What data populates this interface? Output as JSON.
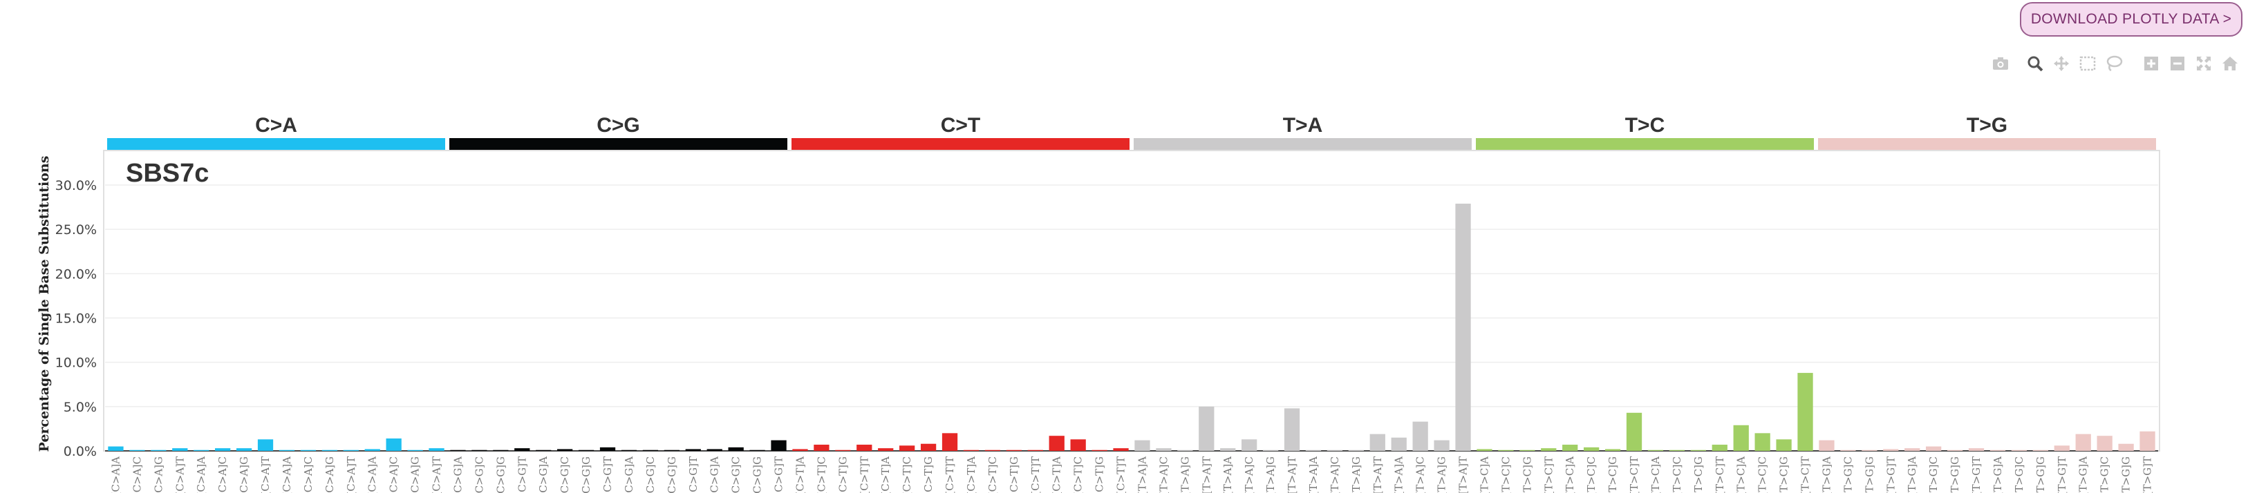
{
  "download_button": {
    "label": "DOWNLOAD PLOTLY DATA >"
  },
  "modebar": {
    "icons": [
      "camera-icon",
      "zoom-icon",
      "pan-icon",
      "box-select-icon",
      "lasso-icon",
      "zoom-in-icon",
      "zoom-out-icon",
      "autoscale-icon",
      "home-icon"
    ]
  },
  "colors": {
    "C>A": "#1ebff0",
    "C>G": "#050708",
    "C>T": "#e62725",
    "T>A": "#cbcacb",
    "T>C": "#a1cf64",
    "T>G": "#edc8c5"
  },
  "chart_data": {
    "type": "bar",
    "title": "SBS7c",
    "ylabel": "Percentage of Single Base Substitutions",
    "ylim": [
      0,
      30
    ],
    "yticks": [
      "0.0%",
      "5.0%",
      "10.0%",
      "15.0%",
      "20.0%",
      "25.0%",
      "30.0%"
    ],
    "ytick_values": [
      0,
      5,
      10,
      15,
      20,
      25,
      30
    ],
    "grid": true,
    "groups": [
      {
        "name": "C>A",
        "color": "#1ebff0",
        "contexts": [
          "A[C>A]A",
          "A[C>A]C",
          "A[C>A]G",
          "A[C>A]T",
          "C[C>A]A",
          "C[C>A]C",
          "C[C>A]G",
          "C[C>A]T",
          "G[C>A]A",
          "G[C>A]C",
          "G[C>A]G",
          "G[C>A]T",
          "T[C>A]A",
          "T[C>A]C",
          "T[C>A]G",
          "T[C>A]T"
        ],
        "values": [
          0.5,
          0.1,
          0.1,
          0.3,
          0.1,
          0.3,
          0.3,
          1.3,
          0.1,
          0.1,
          0.1,
          0.1,
          0.2,
          1.4,
          0.1,
          0.3
        ]
      },
      {
        "name": "C>G",
        "color": "#050708",
        "contexts": [
          "A[C>G]A",
          "A[C>G]C",
          "A[C>G]G",
          "A[C>G]T",
          "C[C>G]A",
          "C[C>G]C",
          "C[C>G]G",
          "C[C>G]T",
          "G[C>G]A",
          "G[C>G]C",
          "G[C>G]G",
          "G[C>G]T",
          "T[C>G]A",
          "T[C>G]C",
          "T[C>G]G",
          "T[C>G]T"
        ],
        "values": [
          0.1,
          0.1,
          0.1,
          0.3,
          0.1,
          0.2,
          0.1,
          0.4,
          0.1,
          0.1,
          0.1,
          0.2,
          0.2,
          0.4,
          0.1,
          1.2
        ]
      },
      {
        "name": "C>T",
        "color": "#e62725",
        "contexts": [
          "A[C>T]A",
          "A[C>T]C",
          "A[C>T]G",
          "A[C>T]T",
          "C[C>T]A",
          "C[C>T]C",
          "C[C>T]G",
          "C[C>T]T",
          "G[C>T]A",
          "G[C>T]C",
          "G[C>T]G",
          "G[C>T]T",
          "T[C>T]A",
          "T[C>T]C",
          "T[C>T]G",
          "T[C>T]T"
        ],
        "values": [
          0.2,
          0.7,
          0.1,
          0.7,
          0.3,
          0.6,
          0.8,
          2.0,
          0.1,
          0.1,
          0.1,
          0.1,
          1.7,
          1.3,
          0.1,
          0.3
        ]
      },
      {
        "name": "T>A",
        "color": "#cbcacb",
        "contexts": [
          "A[T>A]A",
          "A[T>A]C",
          "A[T>A]G",
          "A[T>A]T",
          "C[T>A]A",
          "C[T>A]C",
          "C[T>A]G",
          "C[T>A]T",
          "G[T>A]A",
          "G[T>A]C",
          "G[T>A]G",
          "G[T>A]T",
          "T[T>A]A",
          "T[T>A]C",
          "T[T>A]G",
          "T[T>A]T"
        ],
        "values": [
          1.2,
          0.3,
          0.1,
          5.0,
          0.3,
          1.3,
          0.1,
          4.8,
          0.1,
          0.1,
          0.1,
          1.9,
          1.5,
          3.3,
          1.2,
          27.9
        ]
      },
      {
        "name": "T>C",
        "color": "#a1cf64",
        "contexts": [
          "A[T>C]A",
          "A[T>C]C",
          "A[T>C]G",
          "A[T>C]T",
          "C[T>C]A",
          "C[T>C]C",
          "C[T>C]G",
          "C[T>C]T",
          "G[T>C]A",
          "G[T>C]C",
          "G[T>C]G",
          "G[T>C]T",
          "T[T>C]A",
          "T[T>C]C",
          "T[T>C]G",
          "T[T>C]T"
        ],
        "values": [
          0.2,
          0.1,
          0.1,
          0.3,
          0.7,
          0.4,
          0.2,
          4.3,
          0.1,
          0.1,
          0.1,
          0.7,
          2.9,
          2.0,
          1.3,
          8.8
        ]
      },
      {
        "name": "T>G",
        "color": "#edc8c5",
        "contexts": [
          "A[T>G]A",
          "A[T>G]C",
          "A[T>G]G",
          "A[T>G]T",
          "C[T>G]A",
          "C[T>G]C",
          "C[T>G]G",
          "C[T>G]T",
          "G[T>G]A",
          "G[T>G]C",
          "G[T>G]G",
          "G[T>G]T",
          "T[T>G]A",
          "T[T>G]C",
          "T[T>G]G",
          "T[T>G]T"
        ],
        "values": [
          1.2,
          0.1,
          0.1,
          0.2,
          0.3,
          0.5,
          0.1,
          0.3,
          0.1,
          0.1,
          0.1,
          0.6,
          1.9,
          1.7,
          0.8,
          2.2
        ]
      }
    ]
  }
}
